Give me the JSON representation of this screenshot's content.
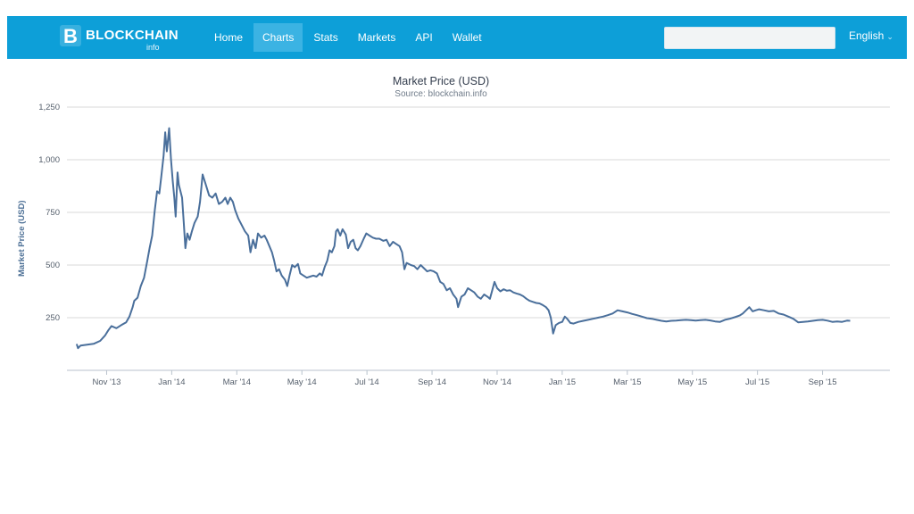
{
  "brand": {
    "name": "BLOCKCHAIN",
    "sub": "info"
  },
  "nav": {
    "items": [
      {
        "label": "Home"
      },
      {
        "label": "Charts"
      },
      {
        "label": "Stats"
      },
      {
        "label": "Markets"
      },
      {
        "label": "API"
      },
      {
        "label": "Wallet"
      }
    ],
    "active_index": 1,
    "language": "English",
    "search_placeholder": ""
  },
  "colors": {
    "navbar": "#0d9fd8",
    "line": "#4a6f9b",
    "grid": "#d8d8d8"
  },
  "chart_data": {
    "type": "line",
    "title": "Market Price (USD)",
    "subtitle": "Source: blockchain.info",
    "ylabel": "Market Price (USD)",
    "xlabel": "",
    "ylim": [
      0,
      1250
    ],
    "yticks": [
      250,
      500,
      750,
      1000,
      1250
    ],
    "ytick_labels": [
      "250",
      "500",
      "750",
      "1,000",
      "1,250"
    ],
    "x_start_month": "Oct 2013",
    "x_end_month": "Sep 2015 (late)",
    "xlim": [
      0,
      24.85
    ],
    "xticks": [
      {
        "t": 1,
        "label": "Nov '13"
      },
      {
        "t": 3,
        "label": "Jan '14"
      },
      {
        "t": 5,
        "label": "Mar '14"
      },
      {
        "t": 7,
        "label": "May '14"
      },
      {
        "t": 9,
        "label": "Jul '14"
      },
      {
        "t": 11,
        "label": "Sep '14"
      },
      {
        "t": 13,
        "label": "Nov '14"
      },
      {
        "t": 15,
        "label": "Jan '15"
      },
      {
        "t": 17,
        "label": "Mar '15"
      },
      {
        "t": 19,
        "label": "May '15"
      },
      {
        "t": 21,
        "label": "Jul '15"
      },
      {
        "t": 23,
        "label": "Sep '15"
      }
    ],
    "series": [
      {
        "name": "Market Price (USD)",
        "points": [
          [
            0.08,
            125
          ],
          [
            0.12,
            105
          ],
          [
            0.2,
            118
          ],
          [
            0.4,
            122
          ],
          [
            0.6,
            126
          ],
          [
            0.8,
            140
          ],
          [
            0.95,
            165
          ],
          [
            1.05,
            190
          ],
          [
            1.15,
            210
          ],
          [
            1.3,
            200
          ],
          [
            1.45,
            215
          ],
          [
            1.6,
            228
          ],
          [
            1.7,
            255
          ],
          [
            1.8,
            300
          ],
          [
            1.85,
            330
          ],
          [
            1.95,
            345
          ],
          [
            2.05,
            400
          ],
          [
            2.15,
            440
          ],
          [
            2.25,
            520
          ],
          [
            2.32,
            580
          ],
          [
            2.4,
            640
          ],
          [
            2.48,
            760
          ],
          [
            2.55,
            850
          ],
          [
            2.62,
            840
          ],
          [
            2.68,
            920
          ],
          [
            2.75,
            1020
          ],
          [
            2.8,
            1130
          ],
          [
            2.85,
            1040
          ],
          [
            2.92,
            1150
          ],
          [
            2.98,
            1000
          ],
          [
            3.03,
            900
          ],
          [
            3.08,
            820
          ],
          [
            3.12,
            730
          ],
          [
            3.18,
            940
          ],
          [
            3.22,
            880
          ],
          [
            3.27,
            850
          ],
          [
            3.32,
            820
          ],
          [
            3.37,
            700
          ],
          [
            3.42,
            580
          ],
          [
            3.48,
            650
          ],
          [
            3.55,
            620
          ],
          [
            3.62,
            660
          ],
          [
            3.7,
            700
          ],
          [
            3.8,
            730
          ],
          [
            3.87,
            800
          ],
          [
            3.95,
            930
          ],
          [
            4.05,
            880
          ],
          [
            4.15,
            830
          ],
          [
            4.25,
            820
          ],
          [
            4.35,
            840
          ],
          [
            4.45,
            790
          ],
          [
            4.55,
            800
          ],
          [
            4.65,
            820
          ],
          [
            4.72,
            790
          ],
          [
            4.8,
            820
          ],
          [
            4.88,
            800
          ],
          [
            4.95,
            760
          ],
          [
            5.05,
            720
          ],
          [
            5.15,
            690
          ],
          [
            5.25,
            660
          ],
          [
            5.35,
            640
          ],
          [
            5.42,
            560
          ],
          [
            5.5,
            620
          ],
          [
            5.58,
            580
          ],
          [
            5.65,
            650
          ],
          [
            5.75,
            630
          ],
          [
            5.85,
            640
          ],
          [
            5.92,
            620
          ],
          [
            6.0,
            590
          ],
          [
            6.08,
            560
          ],
          [
            6.15,
            520
          ],
          [
            6.22,
            470
          ],
          [
            6.3,
            480
          ],
          [
            6.38,
            450
          ],
          [
            6.48,
            430
          ],
          [
            6.55,
            400
          ],
          [
            6.62,
            450
          ],
          [
            6.7,
            500
          ],
          [
            6.78,
            490
          ],
          [
            6.88,
            505
          ],
          [
            6.95,
            460
          ],
          [
            7.05,
            450
          ],
          [
            7.15,
            440
          ],
          [
            7.25,
            445
          ],
          [
            7.35,
            450
          ],
          [
            7.45,
            445
          ],
          [
            7.55,
            460
          ],
          [
            7.62,
            450
          ],
          [
            7.7,
            490
          ],
          [
            7.78,
            520
          ],
          [
            7.85,
            570
          ],
          [
            7.92,
            560
          ],
          [
            8.0,
            590
          ],
          [
            8.05,
            660
          ],
          [
            8.1,
            670
          ],
          [
            8.18,
            640
          ],
          [
            8.25,
            670
          ],
          [
            8.35,
            645
          ],
          [
            8.42,
            580
          ],
          [
            8.5,
            610
          ],
          [
            8.58,
            620
          ],
          [
            8.65,
            580
          ],
          [
            8.72,
            570
          ],
          [
            8.8,
            590
          ],
          [
            8.9,
            625
          ],
          [
            8.98,
            650
          ],
          [
            9.08,
            640
          ],
          [
            9.18,
            630
          ],
          [
            9.28,
            625
          ],
          [
            9.38,
            625
          ],
          [
            9.5,
            615
          ],
          [
            9.6,
            620
          ],
          [
            9.7,
            590
          ],
          [
            9.8,
            610
          ],
          [
            9.9,
            600
          ],
          [
            10.0,
            590
          ],
          [
            10.08,
            560
          ],
          [
            10.15,
            480
          ],
          [
            10.22,
            510
          ],
          [
            10.35,
            500
          ],
          [
            10.45,
            495
          ],
          [
            10.55,
            480
          ],
          [
            10.65,
            500
          ],
          [
            10.75,
            485
          ],
          [
            10.85,
            470
          ],
          [
            10.95,
            475
          ],
          [
            11.05,
            470
          ],
          [
            11.15,
            460
          ],
          [
            11.25,
            420
          ],
          [
            11.35,
            410
          ],
          [
            11.45,
            380
          ],
          [
            11.55,
            390
          ],
          [
            11.65,
            360
          ],
          [
            11.75,
            340
          ],
          [
            11.8,
            300
          ],
          [
            11.9,
            350
          ],
          [
            12.0,
            360
          ],
          [
            12.1,
            390
          ],
          [
            12.2,
            380
          ],
          [
            12.3,
            370
          ],
          [
            12.4,
            350
          ],
          [
            12.5,
            340
          ],
          [
            12.6,
            360
          ],
          [
            12.7,
            350
          ],
          [
            12.78,
            340
          ],
          [
            12.85,
            380
          ],
          [
            12.92,
            420
          ],
          [
            13.0,
            390
          ],
          [
            13.1,
            375
          ],
          [
            13.2,
            385
          ],
          [
            13.3,
            378
          ],
          [
            13.4,
            380
          ],
          [
            13.5,
            370
          ],
          [
            13.6,
            365
          ],
          [
            13.7,
            360
          ],
          [
            13.8,
            352
          ],
          [
            13.9,
            340
          ],
          [
            14.0,
            330
          ],
          [
            14.1,
            325
          ],
          [
            14.2,
            320
          ],
          [
            14.3,
            318
          ],
          [
            14.4,
            310
          ],
          [
            14.5,
            300
          ],
          [
            14.58,
            285
          ],
          [
            14.65,
            250
          ],
          [
            14.72,
            175
          ],
          [
            14.8,
            215
          ],
          [
            14.9,
            225
          ],
          [
            15.0,
            230
          ],
          [
            15.08,
            255
          ],
          [
            15.15,
            245
          ],
          [
            15.25,
            225
          ],
          [
            15.35,
            222
          ],
          [
            15.5,
            230
          ],
          [
            15.65,
            235
          ],
          [
            15.8,
            240
          ],
          [
            15.95,
            245
          ],
          [
            16.1,
            250
          ],
          [
            16.25,
            255
          ],
          [
            16.4,
            262
          ],
          [
            16.55,
            270
          ],
          [
            16.7,
            285
          ],
          [
            16.85,
            280
          ],
          [
            17.0,
            275
          ],
          [
            17.15,
            268
          ],
          [
            17.3,
            262
          ],
          [
            17.45,
            255
          ],
          [
            17.6,
            248
          ],
          [
            17.75,
            245
          ],
          [
            17.9,
            240
          ],
          [
            18.05,
            235
          ],
          [
            18.2,
            232
          ],
          [
            18.35,
            235
          ],
          [
            18.5,
            236
          ],
          [
            18.65,
            238
          ],
          [
            18.8,
            240
          ],
          [
            18.95,
            238
          ],
          [
            19.1,
            236
          ],
          [
            19.25,
            238
          ],
          [
            19.4,
            240
          ],
          [
            19.55,
            237
          ],
          [
            19.7,
            232
          ],
          [
            19.85,
            230
          ],
          [
            20.0,
            240
          ],
          [
            20.15,
            245
          ],
          [
            20.3,
            252
          ],
          [
            20.45,
            260
          ],
          [
            20.55,
            270
          ],
          [
            20.65,
            285
          ],
          [
            20.75,
            300
          ],
          [
            20.85,
            280
          ],
          [
            20.95,
            285
          ],
          [
            21.05,
            290
          ],
          [
            21.2,
            285
          ],
          [
            21.35,
            280
          ],
          [
            21.5,
            282
          ],
          [
            21.65,
            270
          ],
          [
            21.8,
            265
          ],
          [
            21.95,
            255
          ],
          [
            22.1,
            245
          ],
          [
            22.25,
            228
          ],
          [
            22.4,
            230
          ],
          [
            22.55,
            232
          ],
          [
            22.7,
            235
          ],
          [
            22.85,
            238
          ],
          [
            23.0,
            240
          ],
          [
            23.15,
            236
          ],
          [
            23.3,
            230
          ],
          [
            23.45,
            232
          ],
          [
            23.6,
            230
          ],
          [
            23.75,
            236
          ],
          [
            23.85,
            235
          ]
        ]
      }
    ]
  }
}
